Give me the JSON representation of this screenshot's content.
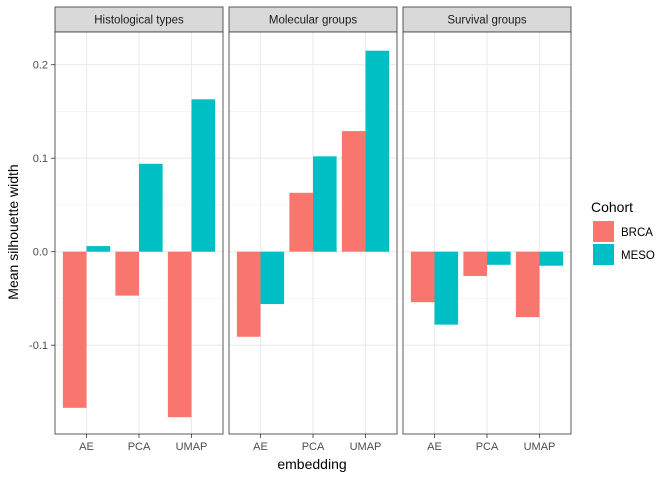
{
  "chart_data": {
    "type": "bar",
    "layout": "faceted",
    "xlabel": "embedding",
    "ylabel": "Mean silhouette width",
    "ylim": [
      -0.195,
      0.235
    ],
    "yticks": [
      -0.1,
      0.0,
      0.1,
      0.2
    ],
    "ytick_labels": [
      "-0.1",
      "0.0",
      "0.1",
      "0.2"
    ],
    "grid": true,
    "categories": [
      "AE",
      "PCA",
      "UMAP"
    ],
    "legend": {
      "title": "Cohort",
      "placement": "right",
      "entries": [
        {
          "name": "BRCA",
          "color": "#F8766D"
        },
        {
          "name": "MESO",
          "color": "#00BFC4"
        }
      ]
    },
    "facets": [
      {
        "title": "Histological types",
        "series": [
          {
            "name": "BRCA",
            "values": [
              -0.167,
              -0.047,
              -0.177
            ]
          },
          {
            "name": "MESO",
            "values": [
              0.006,
              0.094,
              0.163
            ]
          }
        ]
      },
      {
        "title": "Molecular groups",
        "series": [
          {
            "name": "BRCA",
            "values": [
              -0.091,
              0.063,
              0.129
            ]
          },
          {
            "name": "MESO",
            "values": [
              -0.056,
              0.102,
              0.215
            ]
          }
        ]
      },
      {
        "title": "Survival groups",
        "series": [
          {
            "name": "BRCA",
            "values": [
              -0.054,
              -0.026,
              -0.07
            ]
          },
          {
            "name": "MESO",
            "values": [
              -0.078,
              -0.014,
              -0.015
            ]
          }
        ]
      }
    ]
  }
}
